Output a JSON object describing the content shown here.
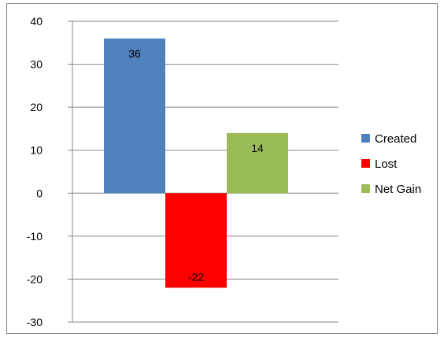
{
  "chart_data": {
    "type": "bar",
    "title": "",
    "xlabel": "",
    "ylabel": "",
    "ylim": [
      -30,
      40
    ],
    "yticks": [
      40,
      30,
      20,
      10,
      0,
      -10,
      -20,
      -30
    ],
    "grid": true,
    "legend_position": "right",
    "series": [
      {
        "name": "Created",
        "value": 36,
        "label": "36",
        "color": "#4F81BD"
      },
      {
        "name": "Lost",
        "value": -22,
        "label": "-22",
        "color": "#FF0000"
      },
      {
        "name": "Net Gain",
        "value": 14,
        "label": "14",
        "color": "#9BBB59"
      }
    ]
  }
}
